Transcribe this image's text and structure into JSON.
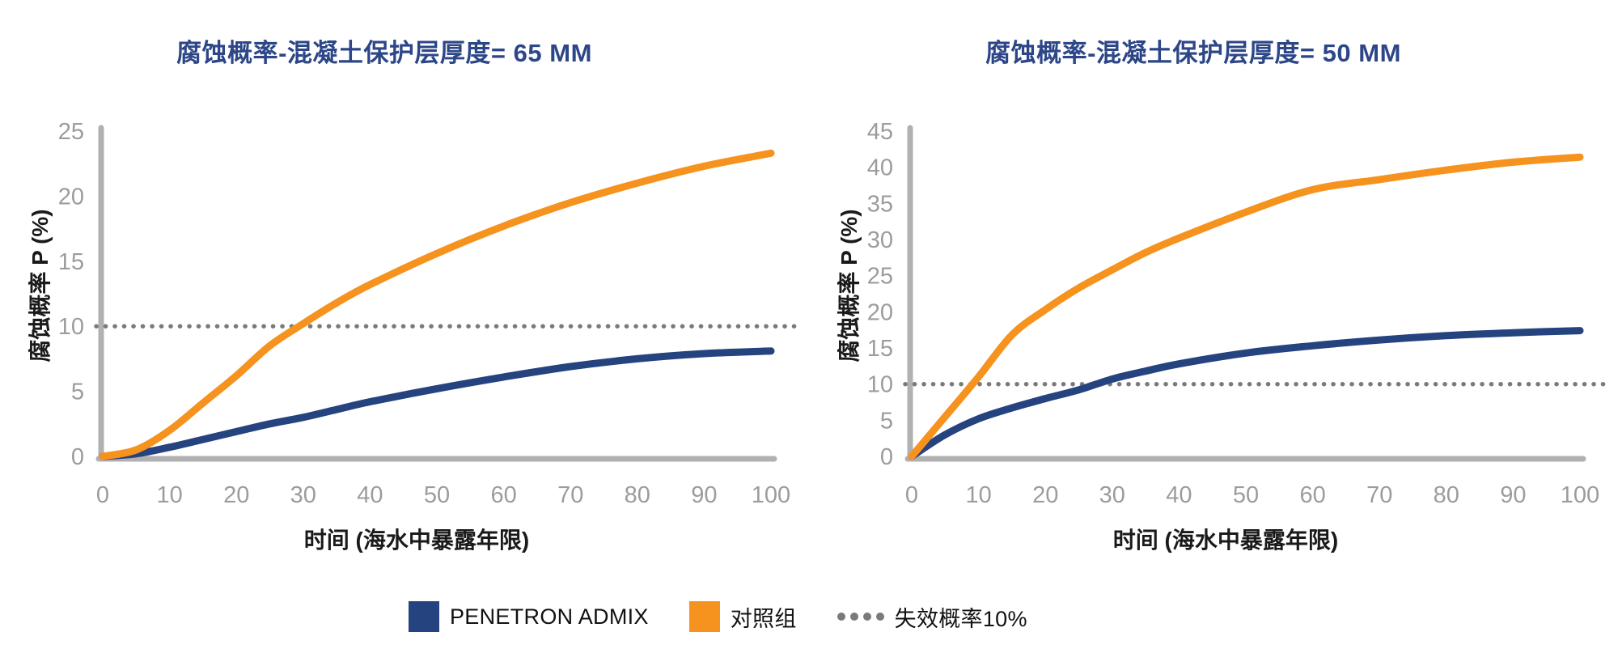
{
  "colors": {
    "title": "#2C4687",
    "axis": "#B1B1B1",
    "tick_labels": "#9C9C9C",
    "text": "#1A1A1A",
    "penetron_admix": "#24437F",
    "control": "#F6921E",
    "threshold": "#7A7A7A"
  },
  "legend": {
    "position": "bottom",
    "items": [
      {
        "label": "PENETRON ADMIX",
        "swatch": "square",
        "color": "#24437F"
      },
      {
        "label": "对照组",
        "swatch": "square",
        "color": "#F6921E"
      },
      {
        "label": "失效概率10%",
        "swatch": "dots",
        "color": "#7A7A7A"
      }
    ]
  },
  "chart_data": [
    {
      "type": "line",
      "title": "腐蚀概率-混凝土保护层厚度= 65 MM",
      "xlabel": "时间 (海水中暴露年限)",
      "ylabel": "腐蚀概率 P (%)",
      "xlim": [
        0,
        100
      ],
      "ylim": [
        0,
        25
      ],
      "xticks": [
        0,
        10,
        20,
        30,
        40,
        50,
        60,
        70,
        80,
        90,
        100
      ],
      "yticks": [
        0,
        5,
        10,
        15,
        20,
        25
      ],
      "grid": false,
      "axis_color": "#B1B1B1",
      "threshold": {
        "value": 10,
        "label": "失效概率10%",
        "style": "dotted",
        "color": "#7A7A7A"
      },
      "x": [
        0,
        5,
        10,
        15,
        20,
        25,
        30,
        35,
        40,
        50,
        60,
        70,
        80,
        90,
        100
      ],
      "series": [
        {
          "name": "PENETRON ADMIX",
          "color": "#24437F",
          "values": [
            0,
            0.2,
            0.7,
            1.3,
            1.9,
            2.5,
            3.0,
            3.6,
            4.2,
            5.2,
            6.1,
            6.9,
            7.5,
            7.9,
            8.1
          ]
        },
        {
          "name": "对照组",
          "color": "#F6921E",
          "values": [
            0,
            0.5,
            2.0,
            4.1,
            6.2,
            8.5,
            10.2,
            11.8,
            13.2,
            15.6,
            17.7,
            19.5,
            21.0,
            22.3,
            23.3
          ]
        }
      ]
    },
    {
      "type": "line",
      "title": "腐蚀概率-混凝土保护层厚度= 50 MM",
      "xlabel": "时间 (海水中暴露年限)",
      "ylabel": "腐蚀概率 P (%)",
      "xlim": [
        0,
        100
      ],
      "ylim": [
        0,
        45
      ],
      "xticks": [
        0,
        10,
        20,
        30,
        40,
        50,
        60,
        70,
        80,
        90,
        100
      ],
      "yticks": [
        0,
        5,
        10,
        15,
        20,
        25,
        30,
        35,
        40,
        45
      ],
      "grid": false,
      "axis_color": "#B1B1B1",
      "threshold": {
        "value": 10,
        "label": "失效概率10%",
        "style": "dotted",
        "color": "#7A7A7A"
      },
      "x": [
        0,
        5,
        10,
        15,
        20,
        25,
        30,
        35,
        40,
        50,
        60,
        70,
        80,
        90,
        100
      ],
      "series": [
        {
          "name": "PENETRON ADMIX",
          "color": "#24437F",
          "values": [
            0,
            3.0,
            5.2,
            6.7,
            8.0,
            9.2,
            10.7,
            11.8,
            12.8,
            14.3,
            15.3,
            16.1,
            16.7,
            17.1,
            17.4
          ]
        },
        {
          "name": "对照组",
          "color": "#F6921E",
          "values": [
            0,
            5.5,
            11.0,
            16.8,
            20.3,
            23.3,
            25.8,
            28.2,
            30.2,
            33.8,
            36.9,
            38.3,
            39.6,
            40.7,
            41.4
          ]
        }
      ]
    }
  ]
}
